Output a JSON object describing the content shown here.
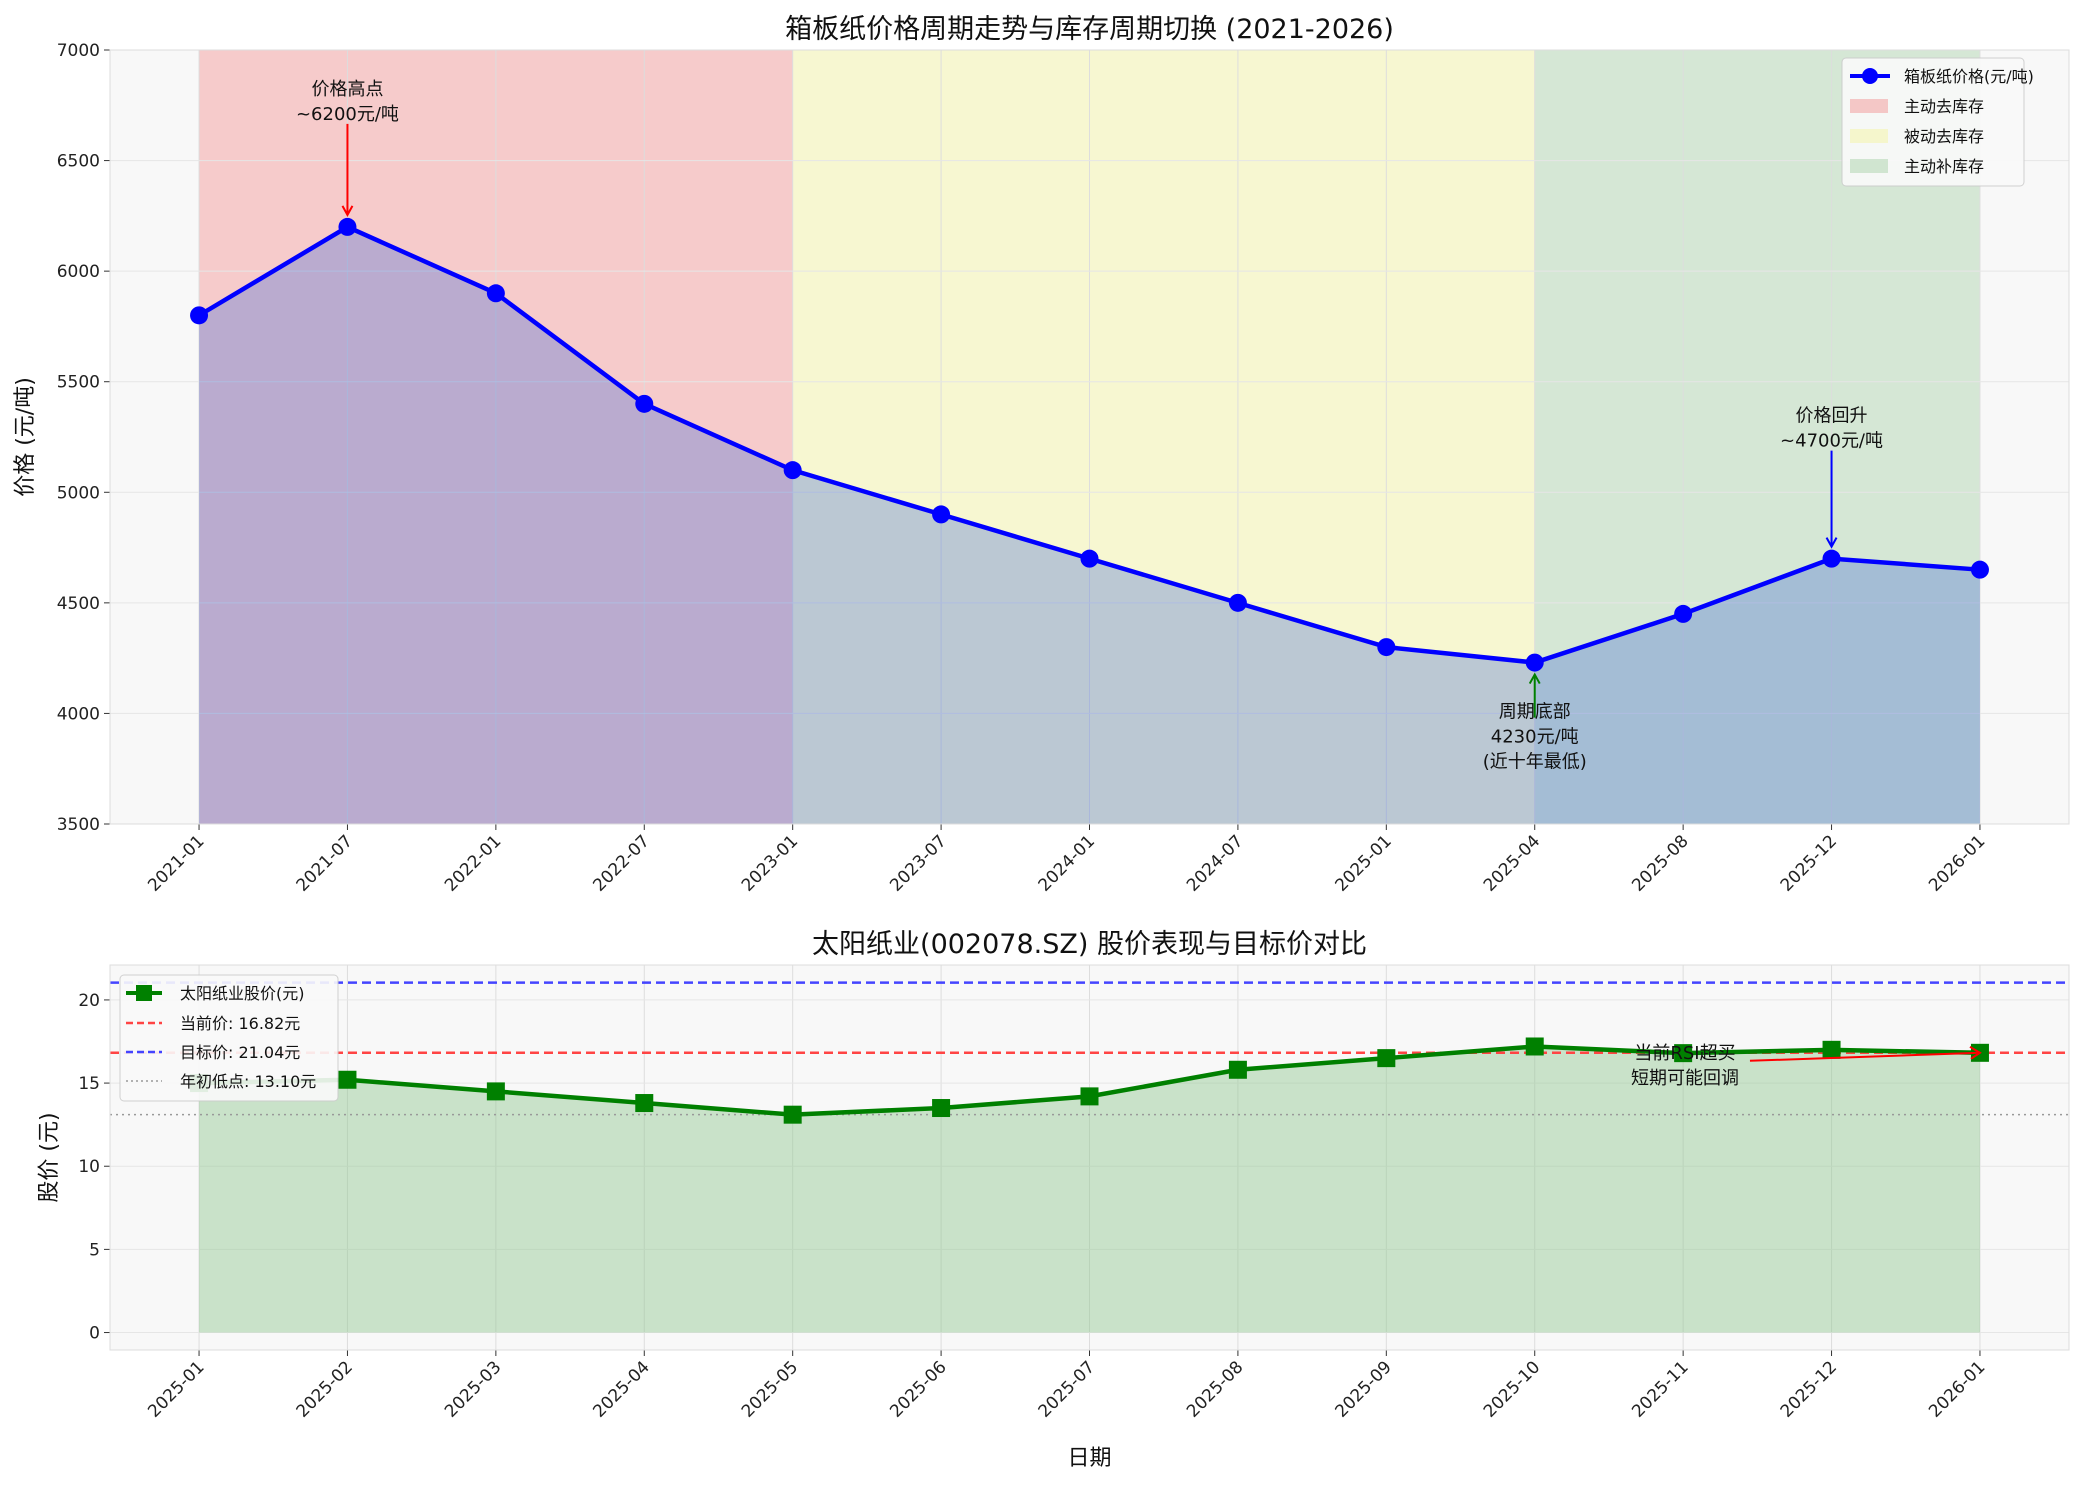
{
  "chart_data": [
    {
      "type": "line",
      "title": "箱板纸价格周期走势与库存周期切换 (2021-2026)",
      "xlabel": "",
      "ylabel": "价格 (元/吨)",
      "categories": [
        "2021-01",
        "2021-07",
        "2022-01",
        "2022-07",
        "2023-01",
        "2023-07",
        "2024-01",
        "2024-07",
        "2025-01",
        "2025-04",
        "2025-08",
        "2025-12",
        "2026-01"
      ],
      "series": [
        {
          "name": "箱板纸价格(元/吨)",
          "values": [
            5800,
            6200,
            5900,
            5400,
            5100,
            4900,
            4700,
            4500,
            4300,
            4230,
            4450,
            4700,
            4650
          ],
          "color": "#0000ff"
        }
      ],
      "ylim": [
        3500,
        7000
      ],
      "yticks": [
        3500,
        4000,
        4500,
        5000,
        5500,
        6000,
        6500,
        7000
      ],
      "grid": true,
      "legend": "top-right",
      "regions": [
        {
          "name": "主动去库存",
          "from": "2021-01",
          "to": "2023-01",
          "color": "#f4a6a6"
        },
        {
          "name": "被动去库存",
          "from": "2023-01",
          "to": "2025-04",
          "color": "#f5f5b0"
        },
        {
          "name": "主动补库存",
          "from": "2025-04",
          "to": "2026-01",
          "color": "#b8d8b8"
        }
      ],
      "annotations": [
        {
          "lines": [
            "价格高点",
            "~6200元/吨"
          ],
          "at": "2021-07",
          "value": 6200,
          "color": "#ff0000"
        },
        {
          "lines": [
            "周期底部",
            "4230元/吨",
            "(近十年最低)"
          ],
          "at": "2025-04",
          "value": 4230,
          "color": "#008000"
        },
        {
          "lines": [
            "价格回升",
            "~4700元/吨"
          ],
          "at": "2025-12",
          "value": 4700,
          "color": "#0000ff"
        }
      ]
    },
    {
      "type": "line",
      "title": "太阳纸业(002078.SZ) 股价表现与目标价对比",
      "xlabel": "日期",
      "ylabel": "股价 (元)",
      "categories": [
        "2025-01",
        "2025-02",
        "2025-03",
        "2025-04",
        "2025-05",
        "2025-06",
        "2025-07",
        "2025-08",
        "2025-09",
        "2025-10",
        "2025-11",
        "2025-12",
        "2026-01"
      ],
      "series": [
        {
          "name": "太阳纸业股价(元)",
          "values": [
            15.0,
            15.2,
            14.5,
            13.8,
            13.1,
            13.5,
            14.2,
            15.8,
            16.5,
            17.2,
            16.8,
            17.0,
            16.82
          ],
          "color": "#008000"
        }
      ],
      "hlines": [
        {
          "name": "当前价: 16.82元",
          "value": 16.82,
          "color": "#ff4444",
          "style": "dashed"
        },
        {
          "name": "目标价: 21.04元",
          "value": 21.04,
          "color": "#4444ff",
          "style": "dashed"
        },
        {
          "name": "年初低点: 13.10元",
          "value": 13.1,
          "color": "#999999",
          "style": "dotted"
        }
      ],
      "ylim": [
        -1.05,
        22.1
      ],
      "yticks": [
        0,
        5,
        10,
        15,
        20
      ],
      "grid": true,
      "legend": "top-left",
      "annotations": [
        {
          "lines": [
            "当前RSI超买",
            "短期可能回调"
          ],
          "at": "2026-01",
          "value": 16.82,
          "color": "#ff0000"
        }
      ]
    }
  ]
}
